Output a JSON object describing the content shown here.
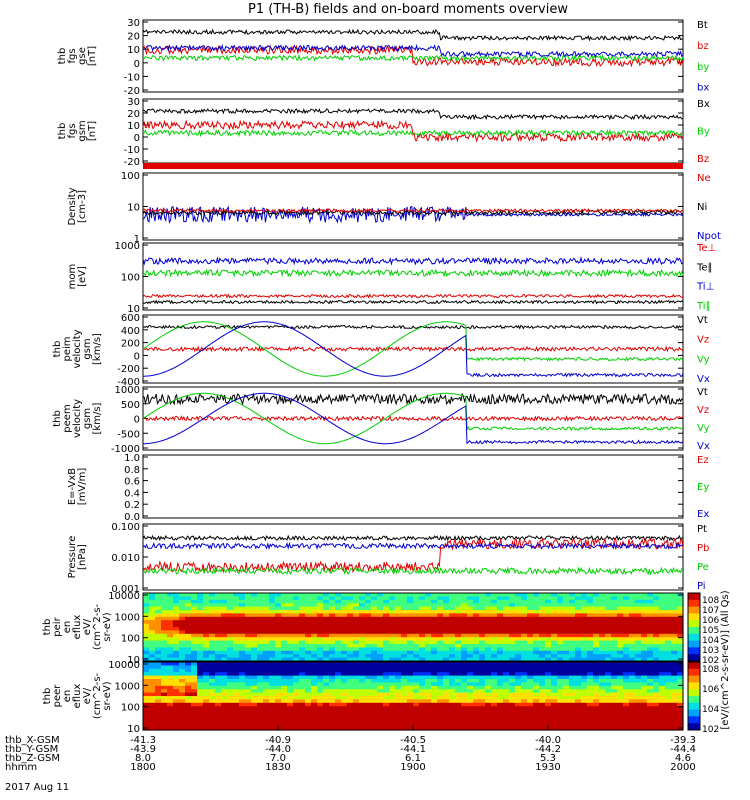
{
  "title": "P1 (TH-B) fields and on-board moments overview",
  "colors": {
    "black": "#000000",
    "red": "#e00000",
    "green": "#00d000",
    "blue": "#0000d0"
  },
  "chart_data": {
    "type": "line",
    "x_time_ticks": [
      "1800",
      "1830",
      "1900",
      "1930",
      "2000"
    ],
    "date": "2017 Aug 11",
    "ephemeris": {
      "labels": [
        "thb_X-GSM",
        "thb_Y-GSM",
        "thb_Z-GSM",
        "hhmm"
      ],
      "rows": [
        [
          "-41.3",
          "-40.9",
          "-40.5",
          "-40.0",
          "-39.3"
        ],
        [
          "-43.9",
          "-44.0",
          "-44.1",
          "-44.2",
          "-44.4"
        ],
        [
          "8.0",
          "7.0",
          "6.1",
          "5.3",
          "4.6"
        ],
        [
          "1800",
          "1830",
          "1900",
          "1930",
          "2000"
        ]
      ]
    },
    "panels": [
      {
        "id": "fgs-gse",
        "ylabel": [
          "thb",
          "fgs",
          "gse",
          "[nT]"
        ],
        "yticks": [
          "30",
          "20",
          "10",
          "0",
          "-10",
          "-20"
        ],
        "legend": [
          {
            "text": "Bt",
            "c": "black"
          },
          {
            "text": "bz",
            "c": "red"
          },
          {
            "text": "by",
            "c": "green"
          },
          {
            "text": "bx",
            "c": "blue"
          }
        ]
      },
      {
        "id": "fgs-gsm",
        "ylabel": [
          "thb",
          "fgs",
          "gsm",
          "[nT]"
        ],
        "yticks": [
          "30",
          "20",
          "10",
          "0",
          "-10",
          "-20"
        ],
        "legend": [
          {
            "text": "Bx",
            "c": "black"
          },
          {
            "text": "By",
            "c": "green"
          },
          {
            "text": "Bz",
            "c": "red"
          }
        ]
      },
      {
        "id": "density",
        "ylabel": [
          "Density",
          "[cm-3]"
        ],
        "yticks": [
          "100",
          "10",
          "1"
        ],
        "legend": [
          {
            "text": "Ne",
            "c": "red"
          },
          {
            "text": "Ni",
            "c": "black"
          },
          {
            "text": "Npot",
            "c": "blue"
          }
        ]
      },
      {
        "id": "temp",
        "ylabel": [
          "mom",
          "[eV]"
        ],
        "yticks": [
          "1000",
          "100",
          "10"
        ],
        "legend": [
          {
            "text": "Te⊥",
            "c": "red"
          },
          {
            "text": "Te∥",
            "c": "black"
          },
          {
            "text": "Ti⊥",
            "c": "blue"
          },
          {
            "text": "Ti∥",
            "c": "green"
          }
        ]
      },
      {
        "id": "vel-i",
        "ylabel": [
          "thb",
          "peim",
          "velocity",
          "gsm",
          "[km/s]"
        ],
        "yticks": [
          "600",
          "400",
          "200",
          "0",
          "-200",
          "-400"
        ],
        "legend": [
          {
            "text": "Vt",
            "c": "black"
          },
          {
            "text": "Vz",
            "c": "red"
          },
          {
            "text": "Vy",
            "c": "green"
          },
          {
            "text": "Vx",
            "c": "blue"
          }
        ]
      },
      {
        "id": "vel-e",
        "ylabel": [
          "thb",
          "peem",
          "velocity",
          "gsm",
          "[km/s]"
        ],
        "yticks": [
          "1000",
          "500",
          "0",
          "-500",
          "-1000"
        ],
        "legend": [
          {
            "text": "Vt",
            "c": "black"
          },
          {
            "text": "Vz",
            "c": "red"
          },
          {
            "text": "Vy",
            "c": "green"
          },
          {
            "text": "Vx",
            "c": "blue"
          }
        ]
      },
      {
        "id": "efield",
        "ylabel": [
          "E=-VxB",
          "[mV/m]"
        ],
        "yticks": [
          "1.0",
          "0.8",
          "0.6",
          "0.4",
          "0.2",
          "0.0"
        ],
        "legend": [
          {
            "text": "Ez",
            "c": "red"
          },
          {
            "text": "Ey",
            "c": "green"
          },
          {
            "text": "Ex",
            "c": "blue"
          }
        ]
      },
      {
        "id": "pressure",
        "ylabel": [
          "Pressure",
          "[nPa]"
        ],
        "yticks": [
          "0.100",
          "0.010",
          "0.001"
        ],
        "legend": [
          {
            "text": "Pt",
            "c": "black"
          },
          {
            "text": "Pb",
            "c": "red"
          },
          {
            "text": "Pe",
            "c": "green"
          },
          {
            "text": "Pi",
            "c": "blue"
          }
        ]
      },
      {
        "id": "spec-i",
        "ylabel": [
          "thb",
          "peir",
          "en",
          "eflux",
          "eV/",
          "(cm^2-s-",
          "sr-eV)"
        ],
        "yticks": [
          "10000",
          "1000",
          "100",
          "10"
        ],
        "legend": []
      },
      {
        "id": "spec-e",
        "ylabel": [
          "thb",
          "peer",
          "en",
          "eflux",
          "eV/",
          "(cm^2-s-",
          "sr-eV)"
        ],
        "yticks": [
          "10000",
          "1000",
          "100",
          "10"
        ],
        "legend": []
      }
    ],
    "colorbar": {
      "ticks_top": [
        "10^8",
        "10^7",
        "10^6",
        "10^5",
        "10^4",
        "10^3",
        "10^2"
      ],
      "ticks_bottom": [
        "10^8",
        "10^6",
        "10^4",
        "10^2"
      ],
      "label": "[eV/(cm^2-s-sr-eV)] (All Qs)"
    }
  }
}
